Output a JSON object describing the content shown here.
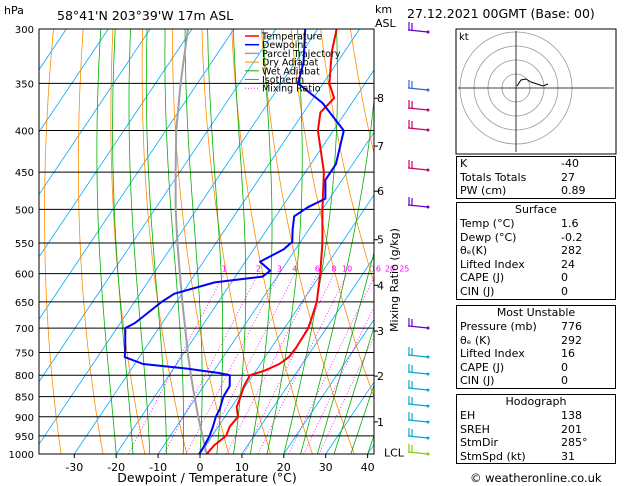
{
  "header": {
    "pressure_unit": "hPa",
    "location": "58°41'N  203°39'W  17m ASL",
    "height_unit_km": "km",
    "height_unit_asl": "ASL",
    "date": "27.12.2021  00GMT  (Base: 00)"
  },
  "chart_data": {
    "type": "skew-t",
    "xlabel": "Dewpoint / Temperature (°C)",
    "ylabel_left": "hPa",
    "ylabel_right": "Mixing Ratio (g/kg)",
    "xlim": [
      -40,
      40
    ],
    "ylim": [
      1000,
      300
    ],
    "pressure_levels": [
      300,
      350,
      400,
      450,
      500,
      550,
      600,
      650,
      700,
      750,
      800,
      850,
      900,
      950,
      1000
    ],
    "x_ticks": [
      -30,
      -20,
      -10,
      0,
      10,
      20,
      30,
      40
    ],
    "height_ticks": [
      {
        "km": "1",
        "p": 913
      },
      {
        "km": "2",
        "p": 802
      },
      {
        "km": "3",
        "p": 706
      },
      {
        "km": "4",
        "p": 620
      },
      {
        "km": "5",
        "p": 545
      },
      {
        "km": "6",
        "p": 475
      },
      {
        "km": "7",
        "p": 418
      },
      {
        "km": "8",
        "p": 365
      }
    ],
    "lcl": {
      "label": "LCL",
      "p": 996
    },
    "mixing_ratio_labels": [
      "1",
      "2",
      "3",
      "4",
      "6",
      "8",
      "10",
      "16",
      "20",
      "25"
    ],
    "legend": [
      "Temperature",
      "Dewpoint",
      "Parcel Trajectory",
      "Dry Adiabat",
      "Wet Adiabat",
      "Isotherm",
      "Mixing Ratio"
    ],
    "legend_position": "top-left",
    "series": [
      {
        "name": "Temperature",
        "points": [
          [
            1000,
            1.6
          ],
          [
            975,
            2.0
          ],
          [
            950,
            3.3
          ],
          [
            925,
            2.7
          ],
          [
            900,
            3.1
          ],
          [
            875,
            1.2
          ],
          [
            850,
            0.5
          ],
          [
            825,
            -0.4
          ],
          [
            800,
            -0.7
          ],
          [
            790,
            2.0
          ],
          [
            775,
            4.5
          ],
          [
            760,
            5.7
          ],
          [
            740,
            5.9
          ],
          [
            700,
            5.7
          ],
          [
            650,
            3.5
          ],
          [
            600,
            -0.2
          ],
          [
            550,
            -4.6
          ],
          [
            500,
            -10.0
          ],
          [
            450,
            -15.6
          ],
          [
            400,
            -23.7
          ],
          [
            380,
            -26.0
          ],
          [
            365,
            -25.0
          ],
          [
            350,
            -28.5
          ],
          [
            320,
            -33.0
          ],
          [
            300,
            -35.5
          ]
        ]
      },
      {
        "name": "Dewpoint",
        "points": [
          [
            1000,
            -0.2
          ],
          [
            975,
            -0.3
          ],
          [
            950,
            -0.6
          ],
          [
            925,
            -1.3
          ],
          [
            900,
            -2.2
          ],
          [
            880,
            -2.5
          ],
          [
            850,
            -3.6
          ],
          [
            825,
            -3.8
          ],
          [
            800,
            -5.5
          ],
          [
            795,
            -8.5
          ],
          [
            785,
            -17.0
          ],
          [
            775,
            -28.0
          ],
          [
            760,
            -33.5
          ],
          [
            745,
            -34.5
          ],
          [
            700,
            -38.0
          ],
          [
            690,
            -36.5
          ],
          [
            650,
            -33.5
          ],
          [
            635,
            -31.8
          ],
          [
            615,
            -24.0
          ],
          [
            605,
            -13.5
          ],
          [
            595,
            -12.6
          ],
          [
            580,
            -16.5
          ],
          [
            560,
            -12.8
          ],
          [
            548,
            -12.0
          ],
          [
            530,
            -13.8
          ],
          [
            510,
            -15.6
          ],
          [
            497,
            -13.8
          ],
          [
            485,
            -11.0
          ],
          [
            460,
            -14.0
          ],
          [
            440,
            -14.0
          ],
          [
            400,
            -17.5
          ],
          [
            370,
            -27.0
          ],
          [
            350,
            -36.0
          ],
          [
            330,
            -38.0
          ],
          [
            300,
            -43.0
          ]
        ]
      },
      {
        "name": "Parcel Trajectory",
        "points": [
          [
            1000,
            1.6
          ],
          [
            950,
            -2.3
          ],
          [
            900,
            -6.4
          ],
          [
            850,
            -10.5
          ],
          [
            800,
            -14.8
          ],
          [
            750,
            -19.2
          ],
          [
            700,
            -23.7
          ],
          [
            650,
            -28.6
          ],
          [
            600,
            -33.7
          ],
          [
            550,
            -39.2
          ],
          [
            500,
            -45.0
          ],
          [
            450,
            -51.0
          ],
          [
            400,
            -57.5
          ],
          [
            350,
            -64.0
          ],
          [
            300,
            -71.0
          ]
        ]
      }
    ]
  },
  "indices": [
    {
      "label": "K",
      "value": "-40"
    },
    {
      "label": "Totals Totals",
      "value": "27"
    },
    {
      "label": "PW (cm)",
      "value": "0.89"
    }
  ],
  "surface": {
    "title": "Surface",
    "rows": [
      {
        "label": "Temp (°C)",
        "value": "1.6"
      },
      {
        "label": "Dewp (°C)",
        "value": "-0.2"
      },
      {
        "label": "θₑ(K)",
        "value": "282"
      },
      {
        "label": "Lifted Index",
        "value": "24"
      },
      {
        "label": "CAPE (J)",
        "value": "0"
      },
      {
        "label": "CIN (J)",
        "value": "0"
      }
    ]
  },
  "most_unstable": {
    "title": "Most Unstable",
    "rows": [
      {
        "label": "Pressure (mb)",
        "value": "776"
      },
      {
        "label": "θₑ (K)",
        "value": "292"
      },
      {
        "label": "Lifted Index",
        "value": "16"
      },
      {
        "label": "CAPE (J)",
        "value": "0"
      },
      {
        "label": "CIN (J)",
        "value": "0"
      }
    ]
  },
  "hodograph": {
    "title": "Hodograph",
    "unit_label": "kt",
    "rows": [
      {
        "label": "EH",
        "value": "138"
      },
      {
        "label": "SREH",
        "value": "201"
      },
      {
        "label": "StmDir",
        "value": "285°"
      },
      {
        "label": "StmSpd (kt)",
        "value": "31"
      }
    ]
  },
  "credit": "© weatheronline.co.uk",
  "colors": {
    "temperature": "#ff0000",
    "dewpoint": "#0000ff",
    "parcel": "#a0a0a0",
    "dry_adiabat": "#ff8c00",
    "wet_adiabat": "#00b000",
    "isotherm": "#00aaff",
    "mixing_ratio": "#ff00ff",
    "wind_upper": "#cc0066",
    "wind_mid": "#6600cc",
    "wind_low": "#00aacc",
    "wind_surface": "#88cc00"
  }
}
